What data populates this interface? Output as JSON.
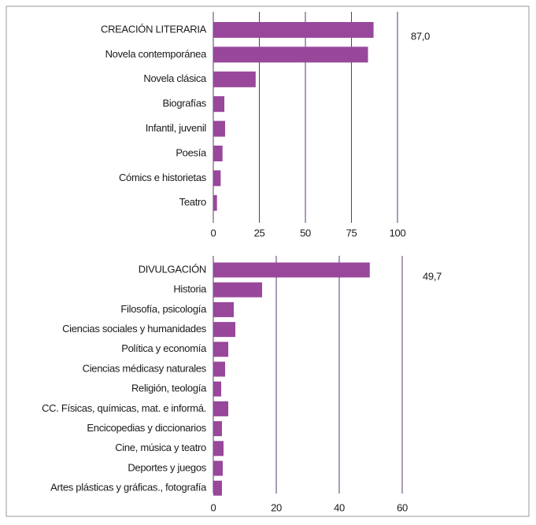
{
  "chart_data": [
    {
      "type": "hbar",
      "categories": [
        "CREACIÓN LITERARIA",
        "Novela contemporánea",
        "Novela clásica",
        "Biografías",
        "Infantil, juvenil",
        "Poesía",
        "Cómics e historietas",
        "Teatro"
      ],
      "values": [
        87.0,
        84,
        23,
        6,
        6.4,
        5,
        4,
        2
      ],
      "value_labels": [
        "87,0",
        null,
        null,
        null,
        null,
        null,
        null,
        null
      ],
      "color": "#98479b",
      "xlim": [
        0,
        100
      ],
      "xticks": [
        0,
        25,
        50,
        75,
        100
      ],
      "grid": true
    },
    {
      "type": "hbar",
      "categories": [
        "DIVULGACIÓN",
        "Historia",
        "Filosofía, psicología",
        "Ciencias sociales y humanidades",
        "Política y economía",
        "Ciencias médicasy naturales",
        "Religión, teología",
        "CC. Físicas, químicas, mat. e informá.",
        "Encicopedias y diccionarios",
        "Cine, música  y teatro",
        "Deportes y juegos",
        "Artes plásticas y gráficas., fotografía"
      ],
      "values": [
        49.7,
        15.5,
        6.5,
        7,
        4.75,
        3.75,
        2.5,
        4.75,
        2.75,
        3.25,
        3,
        2.75
      ],
      "value_labels": [
        "49,7",
        null,
        null,
        null,
        null,
        null,
        null,
        null,
        null,
        null,
        null,
        null
      ],
      "color": "#98479b",
      "xlim": [
        0,
        60
      ],
      "xticks": [
        0,
        20,
        40,
        60
      ],
      "grid": true
    }
  ]
}
